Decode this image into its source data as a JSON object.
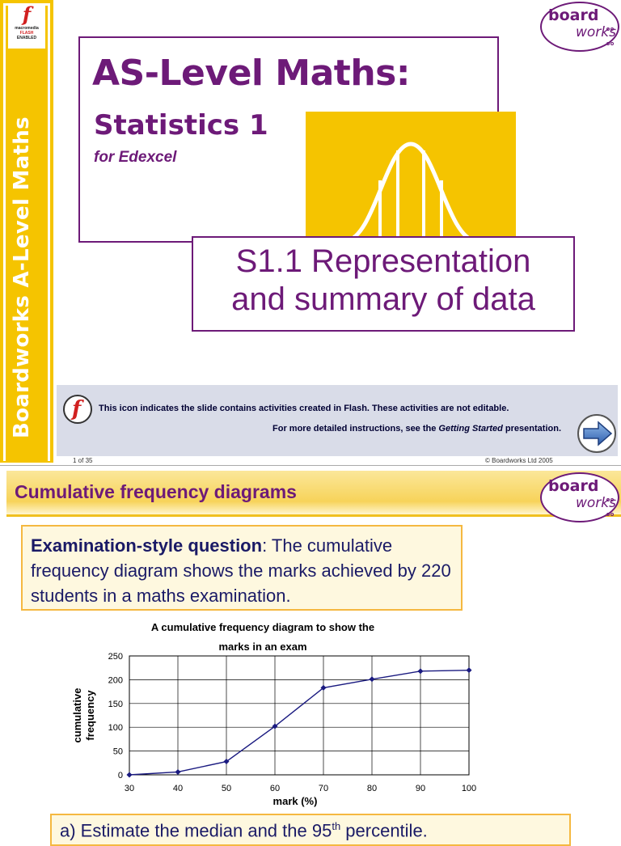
{
  "slide1": {
    "sidebar_title": "Boardworks A-Level Maths",
    "flash_badge": {
      "letter": "f",
      "line1": "macromedia",
      "line2": "FLASH",
      "line3": "ENABLED"
    },
    "logo": {
      "part1": "board",
      "part2": "works"
    },
    "main_title": "AS-Level Maths:",
    "subtitle": "Statistics 1",
    "board": "for Edexcel",
    "unit_line1": "S1.1 Representation",
    "unit_line2": "and summary of data",
    "info_line1": "This icon indicates the slide contains activities created in Flash. These activities are not editable.",
    "info_line2_pre": "For more detailed instructions, see the ",
    "info_line2_em": "Getting Started",
    "info_line2_post": " presentation.",
    "footer_left": "1 of 35",
    "footer_right": "© Boardworks Ltd 2005",
    "colors": {
      "purple": "#6d1a78",
      "yellow": "#f5c400",
      "info_bg": "#d9dce8"
    }
  },
  "slide2": {
    "title": "Cumulative frequency diagrams",
    "logo": {
      "part1": "board",
      "part2": "works"
    },
    "question_bold": "Examination-style question",
    "question_text": ": The cumulative frequency diagram shows the marks achieved by 220 students in a maths examination.",
    "part_a_pre": "a) Estimate the median and the 95",
    "part_a_sup": "th",
    "part_a_post": " percentile."
  },
  "chart_data": {
    "type": "line",
    "title_line1": "A cumulative frequency diagram to show the",
    "title_line2": "marks in an exam",
    "xlabel": "mark (%)",
    "ylabel_line1": "cumulative",
    "ylabel_line2": "frequency",
    "x": [
      30,
      40,
      50,
      60,
      70,
      80,
      90,
      100
    ],
    "y": [
      0,
      6,
      28,
      102,
      183,
      201,
      218,
      220
    ],
    "xlim": [
      30,
      100
    ],
    "ylim": [
      0,
      250
    ],
    "xticks": [
      30,
      40,
      50,
      60,
      70,
      80,
      90,
      100
    ],
    "yticks": [
      0,
      50,
      100,
      150,
      200,
      250
    ],
    "grid": true,
    "line_color": "#1a1a80"
  }
}
